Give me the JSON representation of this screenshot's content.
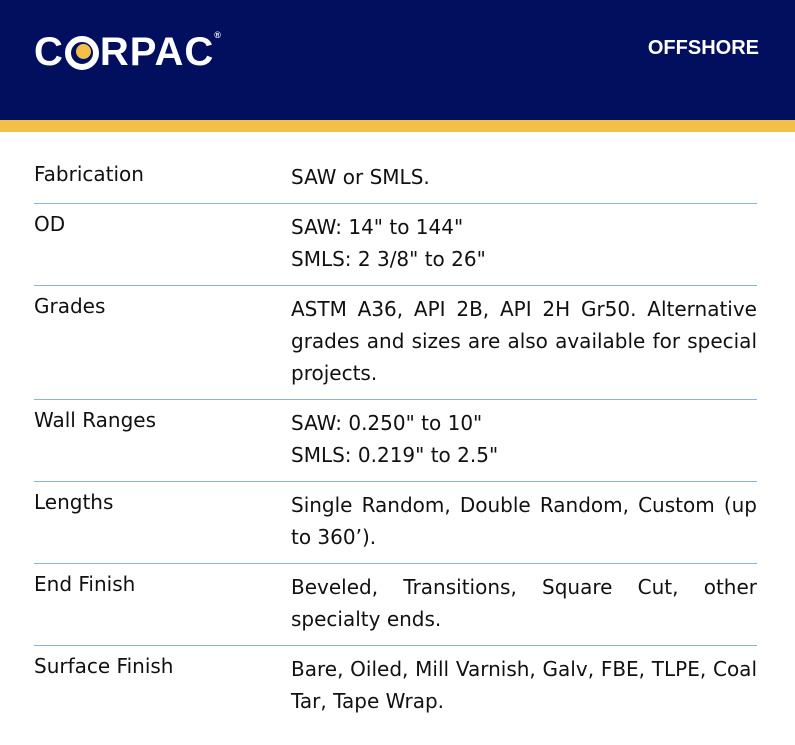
{
  "header": {
    "logo": "CORPAC",
    "tagline": "OFFSHORE",
    "colors": {
      "navy": "#020f5e",
      "gold": "#f2bf48",
      "divider": "#8ab4dc"
    }
  },
  "rows": [
    {
      "label": "Fabrication",
      "lines": [
        "SAW or SMLS."
      ]
    },
    {
      "label": "OD",
      "lines": [
        "SAW: 14\" to 144\"",
        "SMLS: 2 3/8\" to 26\""
      ]
    },
    {
      "label": "Grades",
      "text": "ASTM A36, API 2B, API 2H Gr50. Alternative grades and sizes are also available for special projects."
    },
    {
      "label": "Wall Ranges",
      "lines": [
        "SAW: 0.250\" to 10\"",
        "SMLS: 0.219\" to 2.5\""
      ]
    },
    {
      "label": "Lengths",
      "text": "Single Random, Double Random, Custom (up to 360’)."
    },
    {
      "label": "End Finish",
      "text": "Beveled, Transitions, Square Cut, other specialty ends."
    },
    {
      "label": "Surface Finish",
      "text": "Bare, Oiled, Mill Varnish, Galv, FBE, TLPE, Coal Tar, Tape Wrap."
    }
  ]
}
